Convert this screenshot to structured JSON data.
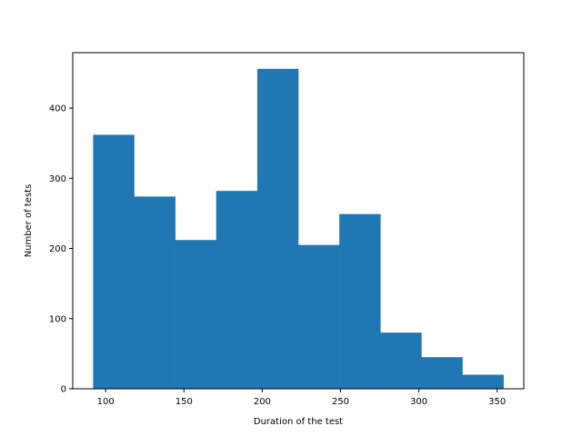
{
  "chart_data": {
    "type": "bar",
    "subtype": "histogram",
    "xlabel": "Duration of the test",
    "ylabel": "Number of tests",
    "bin_edges": [
      92,
      118.2,
      144.4,
      170.6,
      196.8,
      223,
      249.2,
      275.4,
      301.6,
      327.8,
      354
    ],
    "values": [
      362,
      274,
      212,
      282,
      456,
      205,
      249,
      80,
      45,
      20
    ],
    "xlim": [
      79,
      367
    ],
    "ylim": [
      0,
      479
    ],
    "xticks": [
      100,
      150,
      200,
      250,
      300,
      350
    ],
    "yticks": [
      0,
      100,
      200,
      300,
      400
    ],
    "bar_color": "#1f77b4",
    "grid": false,
    "legend": "none"
  }
}
